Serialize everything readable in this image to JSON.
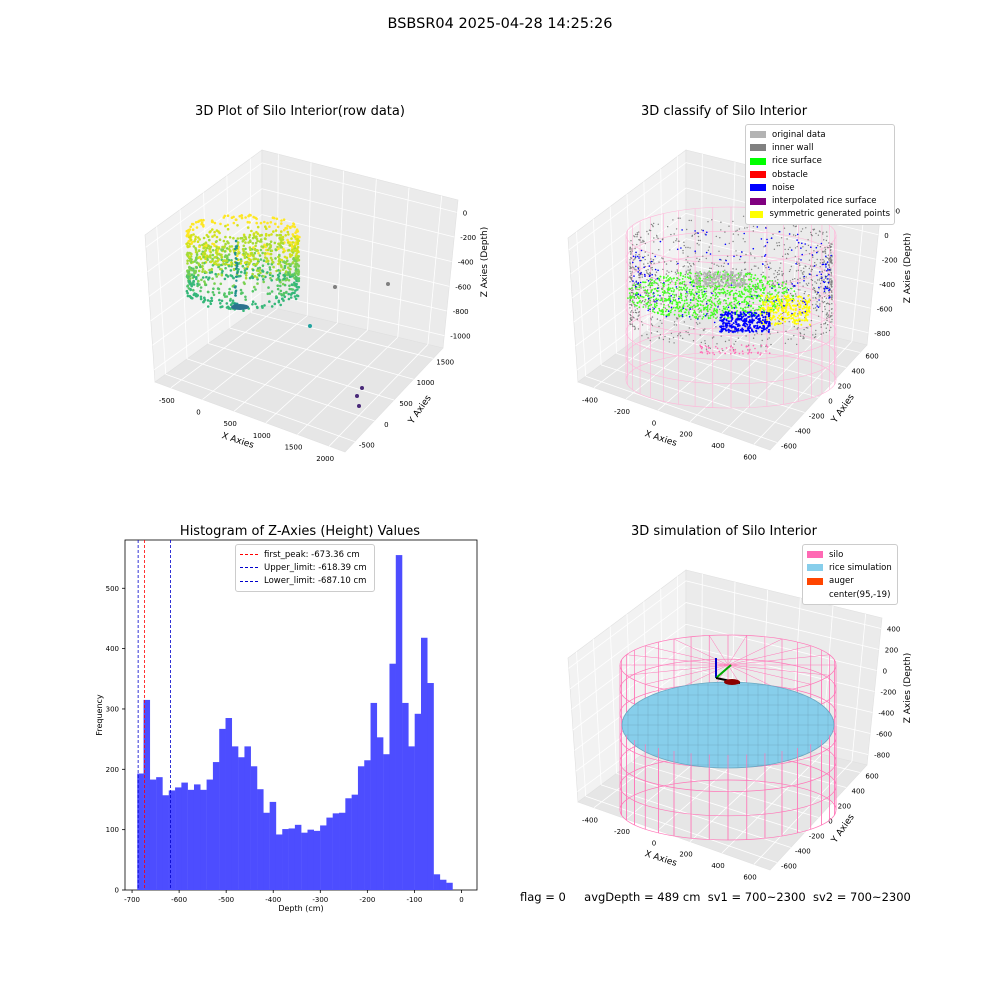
{
  "suptitle": "BSBSR04 2025-04-28 14:25:26",
  "footer": {
    "flag": "flag = 0",
    "avg": "avgDepth = 489 cm",
    "sv1": "sv1 = 700~2300",
    "sv2": "sv2 = 700~2300"
  },
  "chart_data": [
    {
      "type": "scatter",
      "title": "3D Plot of Silo Interior(row data)",
      "xlabel": "X Axies",
      "ylabel": "Y Axies",
      "zlabel": "Z Axies (Depth)",
      "x_ticks": [
        "-500",
        "0",
        "500",
        "1000",
        "1500",
        "2000"
      ],
      "y_ticks": [
        "-500",
        "0",
        "500",
        "1000",
        "1500"
      ],
      "z_ticks": [
        "0",
        "-200",
        "-400",
        "-600",
        "-800",
        "-1000"
      ],
      "colormap": "viridis",
      "outliers": [
        {
          "x": 850,
          "y": 300,
          "z": -700
        },
        {
          "x": 1250,
          "y": 700,
          "z": -650
        },
        {
          "x": 700,
          "y": -200,
          "z": -900
        },
        {
          "x": 1650,
          "y": -550,
          "z": -1100
        }
      ]
    },
    {
      "type": "scatter",
      "title": "3D classify of Silo Interior",
      "xlabel": "X Axies",
      "ylabel": "Y Axies",
      "zlabel": "Z Axies (Depth)",
      "x_ticks": [
        "-400",
        "-200",
        "0",
        "200",
        "400",
        "600"
      ],
      "y_ticks": [
        "-600",
        "-400",
        "-200",
        "0",
        "200",
        "400",
        "600"
      ],
      "z_ticks": [
        "200",
        "0",
        "-200",
        "-400",
        "-600",
        "-800"
      ],
      "z_top_partial": "00",
      "legend": [
        {
          "label": "original data",
          "color": "#b3b3b3"
        },
        {
          "label": "inner wall",
          "color": "#808080"
        },
        {
          "label": "rice surface",
          "color": "#00ff00"
        },
        {
          "label": "obstacle",
          "color": "#ff0000"
        },
        {
          "label": "noise",
          "color": "#0000ff"
        },
        {
          "label": "interpolated rice surface",
          "color": "#800080"
        },
        {
          "label": "symmetric generated points",
          "color": "#ffff00"
        }
      ]
    },
    {
      "type": "bar",
      "title": "Histogram of Z-Axies (Height) Values",
      "xlabel": "Depth (cm)",
      "ylabel": "Frequency",
      "bar_color": "#4d4dff",
      "x_range": [
        -715,
        33
      ],
      "y_range": [
        0,
        580
      ],
      "x_ticks": [
        -700,
        -600,
        -500,
        -400,
        -300,
        -200,
        -100,
        0
      ],
      "y_ticks": [
        0,
        100,
        200,
        300,
        400,
        500
      ],
      "bin_start": -689,
      "bin_width": 13.4,
      "values": [
        193,
        315,
        183,
        187,
        157,
        165,
        170,
        178,
        166,
        175,
        166,
        183,
        212,
        267,
        285,
        238,
        220,
        238,
        205,
        167,
        128,
        146,
        92,
        101,
        102,
        108,
        95,
        100,
        98,
        107,
        120,
        127,
        128,
        152,
        158,
        205,
        215,
        310,
        253,
        225,
        375,
        555,
        310,
        238,
        292,
        418,
        343,
        26,
        17,
        12
      ],
      "vlines": [
        {
          "label": "first_peak: -673.36 cm",
          "x": -673.36,
          "color": "#ff0000"
        },
        {
          "label": "Upper_limit: -618.39 cm",
          "x": -618.39,
          "color": "#0000cc"
        },
        {
          "label": "Lower_limit: -687.10 cm",
          "x": -687.1,
          "color": "#0000cc"
        }
      ]
    },
    {
      "type": "scatter",
      "title": "3D simulation of Silo Interior",
      "xlabel": "X Axies",
      "ylabel": "Y Axies",
      "zlabel": "Z Axies (Depth)",
      "x_ticks": [
        "-400",
        "-200",
        "0",
        "200",
        "400",
        "600"
      ],
      "y_ticks": [
        "-600",
        "-400",
        "-200",
        "0",
        "200",
        "400",
        "600"
      ],
      "z_ticks": [
        "400",
        "200",
        "0",
        "-200",
        "-400",
        "-600",
        "-800"
      ],
      "legend": [
        {
          "label": "silo",
          "color": "#ff69b4"
        },
        {
          "label": "rice simulation",
          "color": "#87ceeb"
        },
        {
          "label": "auger",
          "color": "#ff4500"
        },
        {
          "label": "center(95,-19)",
          "color": "#ffffff"
        }
      ]
    }
  ]
}
